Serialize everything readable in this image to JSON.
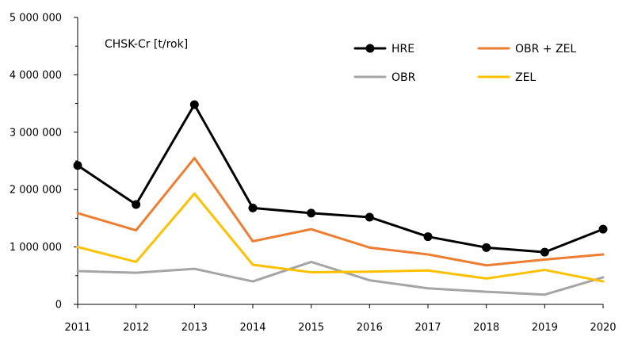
{
  "chart_data": {
    "type": "line",
    "title": "CHSK-Cr [t/rok]",
    "xlabel": "",
    "ylabel": "",
    "categories": [
      "2011",
      "2012",
      "2013",
      "2014",
      "2015",
      "2016",
      "2017",
      "2018",
      "2019",
      "2020"
    ],
    "ylim": [
      0,
      5000000
    ],
    "yticks": [
      {
        "value": 0,
        "label": "0"
      },
      {
        "value": 1000000,
        "label": "1 000 000"
      },
      {
        "value": 2000000,
        "label": "2 000 000"
      },
      {
        "value": 3000000,
        "label": "3 000 000"
      },
      {
        "value": 4000000,
        "label": "4 000 000"
      },
      {
        "value": 5000000,
        "label": "5 000 000"
      }
    ],
    "grid": false,
    "legend_position": "top-right",
    "series": [
      {
        "name": "HRE",
        "color": "#000000",
        "marker": "circle",
        "values": [
          2420000,
          1740000,
          3480000,
          1680000,
          1590000,
          1520000,
          1180000,
          990000,
          910000,
          1310000
        ]
      },
      {
        "name": "OBR + ZEL",
        "color": "#ED7D31",
        "marker": "none",
        "values": [
          1590000,
          1290000,
          2550000,
          1100000,
          1310000,
          990000,
          870000,
          680000,
          780000,
          870000
        ]
      },
      {
        "name": "OBR",
        "color": "#A5A5A5",
        "marker": "none",
        "values": [
          580000,
          550000,
          620000,
          400000,
          740000,
          420000,
          280000,
          220000,
          170000,
          470000
        ]
      },
      {
        "name": "ZEL",
        "color": "#FFC000",
        "marker": "none",
        "values": [
          1000000,
          740000,
          1930000,
          690000,
          560000,
          570000,
          590000,
          450000,
          600000,
          400000
        ]
      }
    ]
  }
}
